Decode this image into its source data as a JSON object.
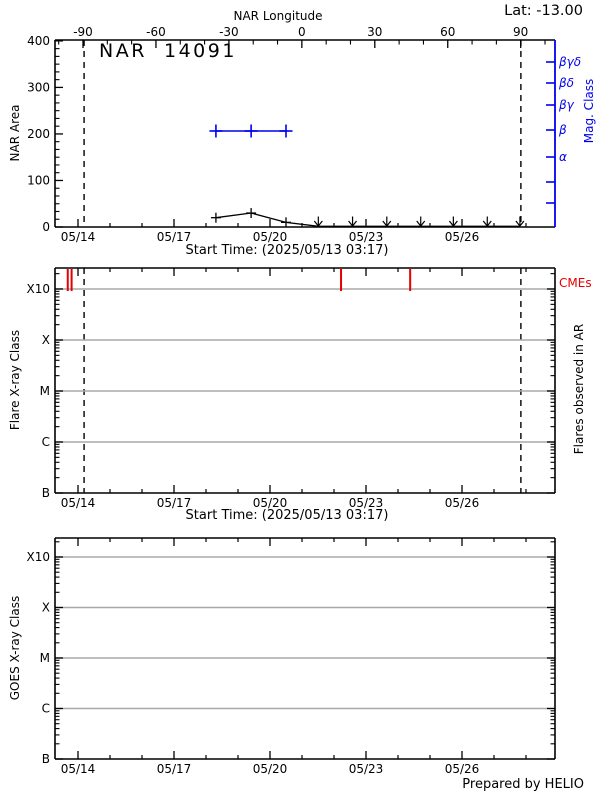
{
  "colors": {
    "axis_black": "#000000",
    "mag_blue": "#0000ee",
    "cme_red": "#e60000",
    "grid_gray": "#a8a8a8"
  },
  "chart_data": [
    {
      "type": "line",
      "title": "NAR  14091",
      "ylabel": "NAR Area",
      "ylim": [
        0,
        400
      ],
      "yticks": [
        0,
        100,
        200,
        300,
        400
      ],
      "y_minor_divisions": 6,
      "x_unit": "days_since_2025-05-13",
      "xlabel": "Start Time: (2025/05/13 03:17)",
      "xticks": [
        {
          "day": 1,
          "label": "05/14"
        },
        {
          "day": 4,
          "label": "05/17"
        },
        {
          "day": 7,
          "label": "05/20"
        },
        {
          "day": 10,
          "label": "05/23"
        },
        {
          "day": 13,
          "label": "05/26"
        }
      ],
      "top_axis": {
        "label": "NAR Longitude",
        "lat_label": "Lat: -13.00",
        "ticks": [
          -90,
          -60,
          -30,
          0,
          30,
          60,
          90
        ],
        "minor_step": 10
      },
      "mag_axis": {
        "label": "Mag. Class",
        "classes": [
          "βγδ",
          "βδ",
          "βγ",
          "β",
          "α"
        ]
      },
      "limb_crossing_days": [
        1.19,
        14.84
      ],
      "series": [
        {
          "name": "NAR Area",
          "marker": "plus",
          "points": [
            {
              "day": 5.31,
              "area": 20
            },
            {
              "day": 6.41,
              "area": 30
            },
            {
              "day": 7.5,
              "area": 10
            }
          ],
          "zero_marker_days": [
            8.51,
            9.58,
            10.65,
            11.71,
            12.73,
            13.79,
            14.81
          ]
        },
        {
          "name": "Magnetic Class",
          "marker": "plus",
          "class": "β",
          "days": [
            5.31,
            6.41,
            7.5
          ]
        }
      ]
    },
    {
      "type": "event-timeline",
      "ylabel": "Flare X-ray Class",
      "yscale": "log",
      "yticks": [
        "B",
        "C",
        "M",
        "X",
        "X10"
      ],
      "right_label": "Flares observed in AR",
      "cme_label": "CMEs",
      "cme_days": [
        0.68,
        0.8,
        9.22,
        11.38
      ],
      "flares_plotted": [],
      "limb_crossing_days": [
        1.19,
        14.84
      ],
      "xlabel": "Start Time: (2025/05/13 03:17)",
      "xticks": [
        {
          "day": 1,
          "label": "05/14"
        },
        {
          "day": 4,
          "label": "05/17"
        },
        {
          "day": 7,
          "label": "05/20"
        },
        {
          "day": 10,
          "label": "05/23"
        },
        {
          "day": 13,
          "label": "05/26"
        }
      ]
    },
    {
      "type": "line",
      "ylabel": "GOES X-ray Class",
      "yscale": "log",
      "yticks": [
        "B",
        "C",
        "M",
        "X",
        "X10"
      ],
      "series": [],
      "footer": "Prepared by HELIO",
      "xticks": [
        {
          "day": 1,
          "label": "05/14"
        },
        {
          "day": 4,
          "label": "05/17"
        },
        {
          "day": 7,
          "label": "05/20"
        },
        {
          "day": 10,
          "label": "05/23"
        },
        {
          "day": 13,
          "label": "05/26"
        }
      ]
    }
  ]
}
